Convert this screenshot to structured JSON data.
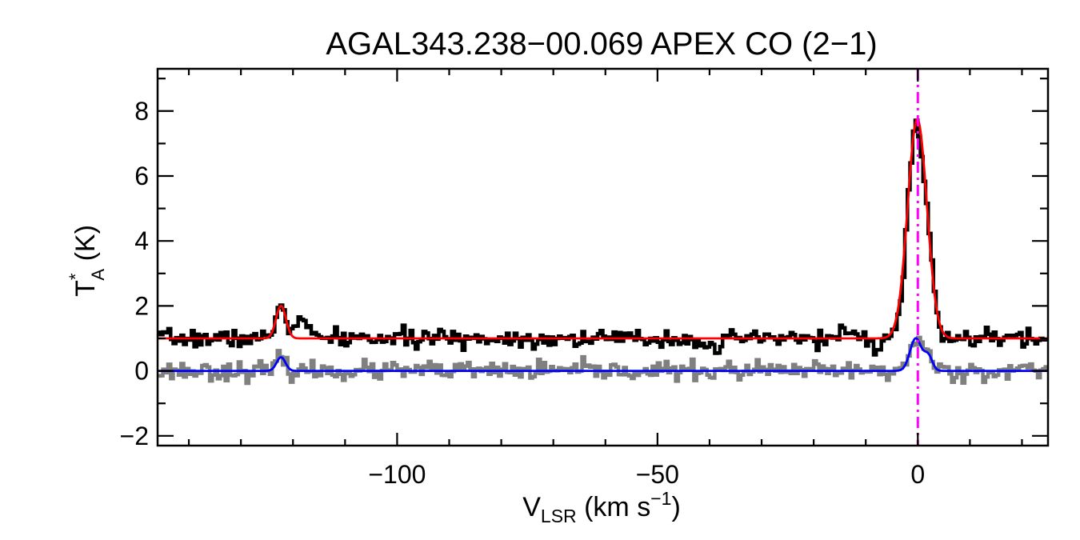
{
  "chart_data": {
    "type": "line",
    "title": "AGAL343.238−00.069  APEX CO (2−1)",
    "xlabel": {
      "main": "V",
      "sub": "LSR",
      "tail": " (km s",
      "sup": "−1",
      "end": ")"
    },
    "ylabel": {
      "main": "T",
      "sup": "*",
      "sub": "A",
      "tail": " (K)"
    },
    "xlim": [
      -146,
      25
    ],
    "ylim": [
      -2.3,
      9.3
    ],
    "xticks": [
      -100,
      -50,
      0
    ],
    "xtick_labels": [
      "−100",
      "−50",
      "0"
    ],
    "yticks": [
      -2,
      0,
      2,
      4,
      6,
      8
    ],
    "ytick_labels": [
      "−2",
      "0",
      "2",
      "4",
      "6",
      "8"
    ],
    "x_minor_step": 10,
    "y_minor_step": 1,
    "grid": false,
    "legend": "none",
    "vline": {
      "x": 0,
      "color": "#ff00ff",
      "style": "dash-dot"
    },
    "series": [
      {
        "role": "observed spectrum (offset +1 K)",
        "kind": "histogram",
        "color": "#000000",
        "x_start": -146,
        "x_end": 25,
        "x_step": 0.5,
        "baseline": 1.0,
        "noise": 0.13,
        "seed": 7,
        "components": [
          {
            "center": -122.3,
            "amp": 1.05,
            "sigma": 0.9
          },
          {
            "center": -118.5,
            "amp": 0.55,
            "sigma": 1.3
          },
          {
            "center": -0.3,
            "amp": 6.65,
            "sigma": 1.6
          },
          {
            "center": 2.3,
            "amp": 1.3,
            "sigma": 0.9
          }
        ],
        "absorptions": [
          {
            "center": -38.5,
            "amp": -0.75,
            "sigma": 0.5
          },
          {
            "center": -40.2,
            "amp": -0.35,
            "sigma": 0.6
          },
          {
            "center": -7.5,
            "amp": -0.25,
            "sigma": 0.8
          },
          {
            "center": -14.5,
            "amp": 0.3,
            "sigma": 0.7
          }
        ]
      },
      {
        "role": "residual / model-subtracted spectrum",
        "kind": "histogram",
        "color": "#808080",
        "x_start": -146,
        "x_end": 25,
        "x_step": 0.5,
        "baseline": 0.0,
        "noise": 0.14,
        "seed": 23,
        "components": [
          {
            "center": -122.3,
            "amp": 0.35,
            "sigma": 0.8
          },
          {
            "center": -0.3,
            "amp": 0.95,
            "sigma": 1.2
          },
          {
            "center": 2.0,
            "amp": 0.45,
            "sigma": 0.9
          }
        ],
        "absorptions": []
      },
      {
        "role": "gaussian fit (offset +1 K)",
        "kind": "line",
        "color": "#ff0000",
        "baseline": 1.0,
        "components": [
          {
            "center": -122.3,
            "amp": 1.0,
            "sigma": 0.95
          },
          {
            "center": -0.1,
            "amp": 6.75,
            "sigma": 1.85
          }
        ]
      },
      {
        "role": "gaussian fit",
        "kind": "line",
        "color": "#0000ff",
        "baseline": 0.0,
        "components": [
          {
            "center": -122.3,
            "amp": 0.42,
            "sigma": 0.85
          },
          {
            "center": -0.4,
            "amp": 1.0,
            "sigma": 1.1
          },
          {
            "center": 2.0,
            "amp": 0.45,
            "sigma": 0.8
          }
        ]
      }
    ]
  }
}
